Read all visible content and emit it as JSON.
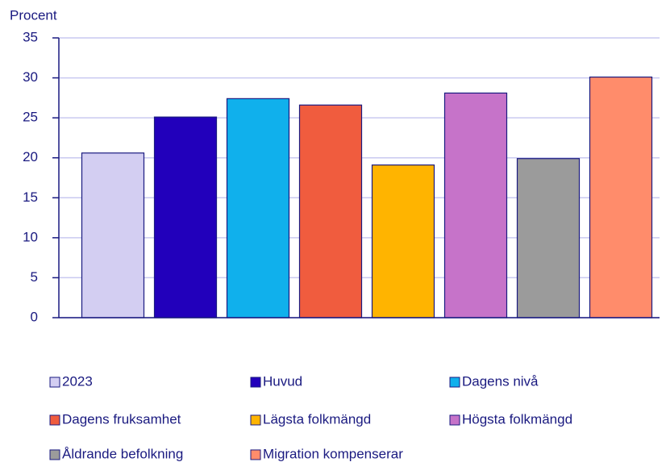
{
  "chart_data": {
    "type": "bar",
    "y_label": "Procent",
    "series": [
      {
        "name": "2023",
        "color": "#d3cef2",
        "values": [
          20.6
        ]
      },
      {
        "name": "Huvud",
        "color": "#2200bb",
        "values": [
          25.1
        ]
      },
      {
        "name": "Dagens nivå",
        "color": "#10b0ec",
        "values": [
          27.4
        ]
      },
      {
        "name": "Dagens fruksamhet",
        "color": "#f05c3e",
        "values": [
          26.6
        ]
      },
      {
        "name": "Lägsta folkmängd",
        "color": "#ffb400",
        "values": [
          19.1
        ]
      },
      {
        "name": "Högsta folkmängd",
        "color": "#c673c9",
        "values": [
          28.1
        ]
      },
      {
        "name": "Åldrande befolkning",
        "color": "#9b9b9b",
        "values": [
          19.9
        ]
      },
      {
        "name": "Migration kompenserar",
        "color": "#ff8c6b",
        "values": [
          30.1
        ]
      }
    ],
    "ylim": [
      0,
      35
    ],
    "yticks": [
      0,
      5,
      10,
      15,
      20,
      25,
      30,
      35
    ],
    "grid": true
  }
}
